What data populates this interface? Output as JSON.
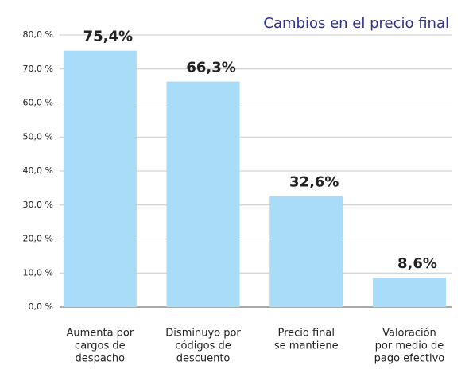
{
  "chart_data": {
    "type": "bar",
    "title": "Cambios en el precio final",
    "categories": [
      [
        "Aumenta por",
        "cargos de",
        "despacho"
      ],
      [
        "Disminuyo por",
        "códigos de",
        "descuento"
      ],
      [
        "Precio final",
        "se mantiene"
      ],
      [
        "Valoración",
        "por medio de",
        "pago efectivo"
      ]
    ],
    "values": [
      75.4,
      66.3,
      32.6,
      8.6
    ],
    "value_labels": [
      "75,4%",
      "66,3%",
      "32,6%",
      "8,6%"
    ],
    "color": "#a9dcf9",
    "ylim": [
      0,
      80
    ],
    "yticks": [
      {
        "value": 0,
        "label": "0,0 %"
      },
      {
        "value": 10,
        "label": "10,0 %"
      },
      {
        "value": 20,
        "label": "20,0 %"
      },
      {
        "value": 30,
        "label": "30,0 %"
      },
      {
        "value": 40,
        "label": "40,0 %"
      },
      {
        "value": 50,
        "label": "50,0 %"
      },
      {
        "value": 60,
        "label": "60,0 %"
      },
      {
        "value": 70,
        "label": "70,0 %"
      },
      {
        "value": 80,
        "label": "80,0 %"
      }
    ],
    "grid": true
  }
}
